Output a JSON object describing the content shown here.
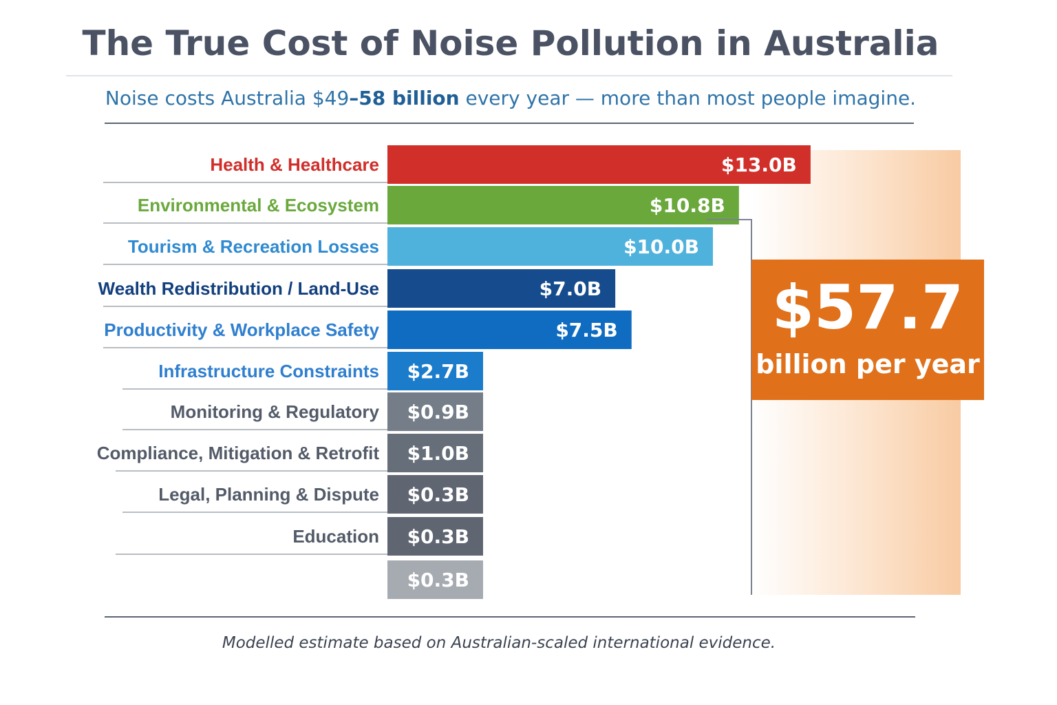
{
  "title": "The True Cost of Noise Pollution in Australia",
  "subtitle": {
    "before": "Noise costs Australia $49",
    "bold": "–58 billion",
    "after": " every year — more than most people imagine."
  },
  "total": {
    "value": "$57.7",
    "label": "billion per year",
    "color": "#e07019"
  },
  "footnote": "Modelled estimate based on Australian-scaled international evidence.",
  "chart_data": {
    "type": "bar",
    "orientation": "horizontal",
    "unit": "$B",
    "categories": [
      "Health & Healthcare",
      "Environmental & Ecosystem",
      "Tourism & Recreation Losses",
      "Wealth Redistribution / Land-Use",
      "Productivity & Workplace Safety",
      "Infrastructure Constraints",
      "Monitoring & Regulatory",
      "Compliance, Mitigation & Retrofit",
      "Legal, Planning & Dispute",
      "Education",
      ""
    ],
    "values": [
      13.0,
      10.8,
      10.0,
      7.0,
      7.5,
      2.7,
      0.9,
      1.0,
      0.3,
      0.3,
      0.3
    ],
    "value_labels": [
      "$13.0B",
      "$10.8B",
      "$10.0B",
      "$7.0B",
      "$7.5B",
      "$2.7B",
      "$0.9B",
      "$1.0B",
      "$0.3B",
      "$0.3B",
      "$0.3B"
    ],
    "bar_colors": [
      "#d12f2a",
      "#6aa83c",
      "#4fb2dc",
      "#164c8d",
      "#0f6cc0",
      "#1b7ccb",
      "#757d88",
      "#666e79",
      "#5f6672",
      "#5f6672",
      "#a6abb2"
    ],
    "label_colors": [
      "#d02e2a",
      "#6aa83c",
      "#2f8ad0",
      "#123f7d",
      "#2f7fcf",
      "#2f7fcf",
      "#535b69",
      "#535b69",
      "#535b69",
      "#535b69",
      "#535b69"
    ],
    "grid": false,
    "legend": "none"
  }
}
